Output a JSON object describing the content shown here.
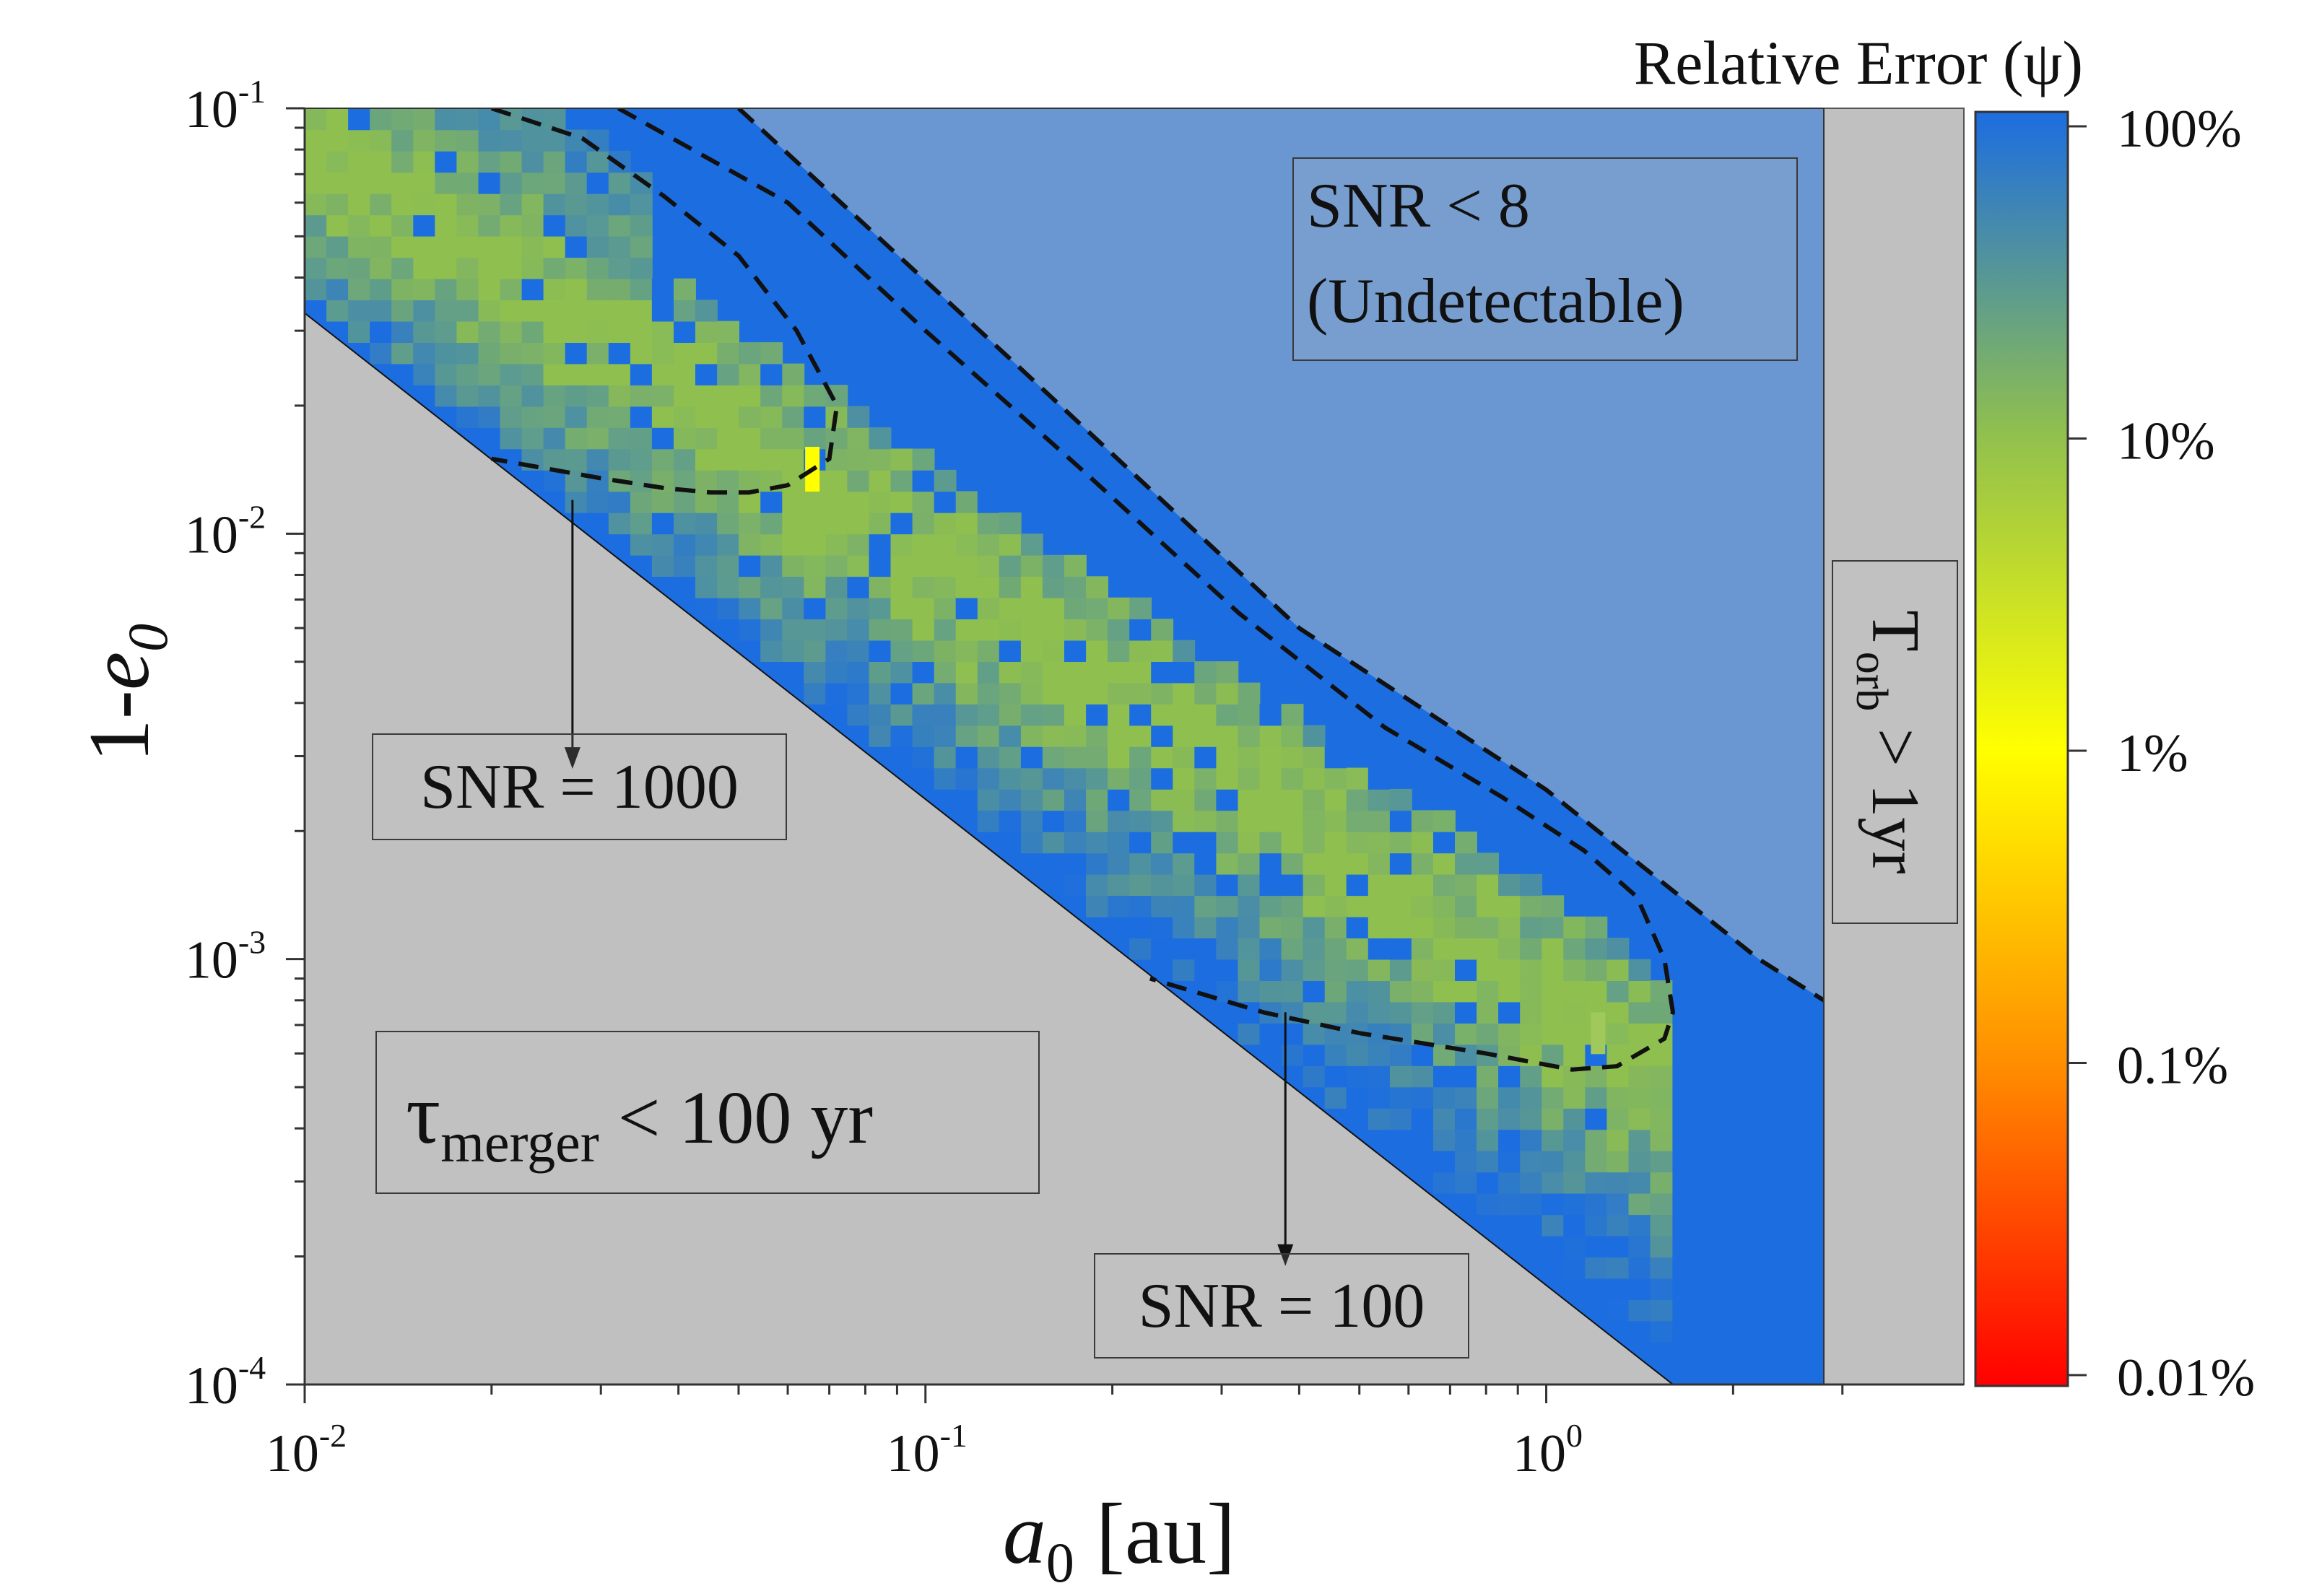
{
  "chart_data": {
    "type": "heatmap",
    "xlabel": "a0 [au]",
    "xlabel_main": "a",
    "xlabel_sub": "0",
    "xlabel_unit": " [au]",
    "ylabel": "1-e0",
    "ylabel_main": "1-",
    "ylabel_var": "e",
    "ylabel_sub": "0",
    "x_scale": "log",
    "y_scale": "log",
    "xlim": [
      0.01,
      2.8
    ],
    "ylim": [
      0.0001,
      0.1
    ],
    "x_ticks": [
      {
        "base": "10",
        "exp": "-2",
        "value": 0.01
      },
      {
        "base": "10",
        "exp": "-1",
        "value": 0.1
      },
      {
        "base": "10",
        "exp": "0",
        "value": 1
      }
    ],
    "y_ticks": [
      {
        "base": "10",
        "exp": "-1",
        "value": 0.1
      },
      {
        "base": "10",
        "exp": "-2",
        "value": 0.01
      },
      {
        "base": "10",
        "exp": "-3",
        "value": 0.001
      },
      {
        "base": "10",
        "exp": "-4",
        "value": 0.0001
      }
    ],
    "colorbar": {
      "title": "Relative Error (ψ)",
      "scale": "log",
      "ticks": [
        {
          "label": "100%",
          "value": 1.0
        },
        {
          "label": "10%",
          "value": 0.1
        },
        {
          "label": "1%",
          "value": 0.01
        },
        {
          "label": "0.1%",
          "value": 0.001
        },
        {
          "label": "0.01%",
          "value": 0.0001
        }
      ],
      "colors": [
        "#ff0000",
        "#ff8c00",
        "#ffff00",
        "#8fbf4f",
        "#1c6de0"
      ]
    },
    "regions": {
      "merger_region_label": "τ",
      "merger_region_sub": "merger",
      "merger_region_rest": " < 100 yr",
      "undetectable_line1": "SNR < 8",
      "undetectable_line2": "(Undetectable)",
      "period_label_main": "T",
      "period_label_sub": "orb",
      "period_label_rest": " > 1yr",
      "colors": {
        "merger": "#c0c0c0",
        "undetectable": "#6a97d2",
        "detectable_low": "#1c6de0",
        "period": "#c0c0c0"
      }
    },
    "merger_boundary": {
      "x": [
        0.01,
        1.6
      ],
      "y": [
        0.033,
        0.0001
      ]
    },
    "period_boundary_x": 2.8,
    "snr8_contour": {
      "x": [
        0.05,
        0.14,
        0.4,
        1.0,
        2.2,
        2.8
      ],
      "y": [
        0.1,
        0.025,
        0.006,
        0.0025,
        0.001,
        0.0008
      ]
    },
    "snr1000_contour": {
      "label": "SNR = 1000",
      "x": [
        0.02,
        0.028,
        0.038,
        0.05,
        0.062,
        0.072,
        0.07,
        0.06,
        0.052,
        0.045,
        0.038,
        0.03,
        0.02
      ],
      "y": [
        0.1,
        0.085,
        0.062,
        0.045,
        0.03,
        0.02,
        0.015,
        0.013,
        0.0125,
        0.0125,
        0.0128,
        0.0135,
        0.015
      ]
    },
    "snr100_contour": {
      "label": "SNR = 100",
      "x": [
        0.032,
        0.06,
        0.1,
        0.18,
        0.32,
        0.55,
        0.85,
        1.15,
        1.4,
        1.55,
        1.6,
        1.55,
        1.3,
        1.1,
        0.8,
        0.5,
        0.35,
        0.23
      ],
      "y": [
        0.1,
        0.06,
        0.03,
        0.014,
        0.0065,
        0.0035,
        0.0024,
        0.0018,
        0.0014,
        0.001,
        0.00075,
        0.00065,
        0.00056,
        0.00055,
        0.0006,
        0.00067,
        0.00075,
        0.0009
      ]
    },
    "annotations": [
      {
        "text": "SNR = 1000",
        "arrow_x": 0.027,
        "arrow_from_y": 0.012,
        "arrow_to_y": 0.0028
      },
      {
        "text": "SNR = 100",
        "arrow_x": 0.38,
        "arrow_from_y": 0.00075,
        "arrow_to_y": 0.00019
      }
    ]
  }
}
